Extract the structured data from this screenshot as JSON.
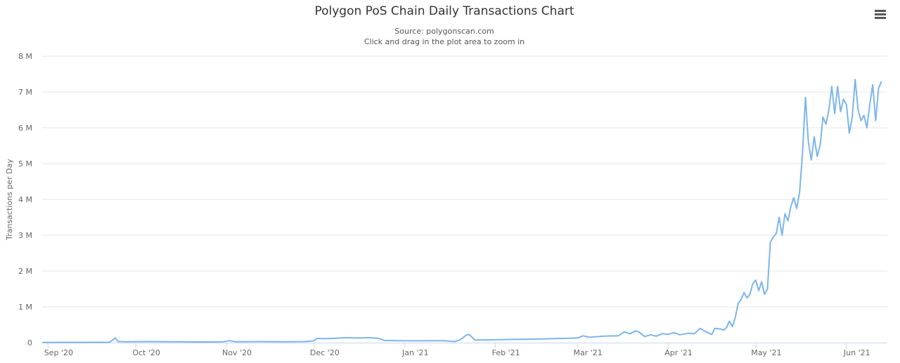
{
  "chart_data": {
    "type": "line",
    "title": "Polygon PoS Chain Daily Transactions Chart",
    "subtitle": [
      "Source: polygonscan.com",
      "Click and drag in the plot area to zoom in"
    ],
    "xlabel": "",
    "ylabel": "Transactions per Day",
    "x_ticks": [
      "Sep '20",
      "Oct '20",
      "Nov '20",
      "Dec '20",
      "Jan '21",
      "Feb '21",
      "Mar '21",
      "Apr '21",
      "May '21",
      "Jun '21"
    ],
    "y_ticks": [
      "0",
      "1 M",
      "2 M",
      "3 M",
      "4 M",
      "5 M",
      "6 M",
      "7 M",
      "8 M"
    ],
    "ylim": [
      0,
      8000000
    ],
    "xlim": [
      "2020-08-30",
      "2021-06-15"
    ],
    "grid": "horizontal",
    "legend": "none",
    "colors": {
      "line": "#7cb5ec",
      "grid": "#e6e6e6",
      "axis": "#ccd6eb"
    },
    "series": [
      {
        "points": [
          [
            "2020-08-30",
            5000
          ],
          [
            "2020-09-05",
            8000
          ],
          [
            "2020-09-12",
            7000
          ],
          [
            "2020-09-18",
            9000
          ],
          [
            "2020-09-20",
            8000
          ],
          [
            "2020-09-22",
            10000
          ],
          [
            "2020-09-24",
            130000
          ],
          [
            "2020-09-25",
            30000
          ],
          [
            "2020-09-28",
            25000
          ],
          [
            "2020-10-05",
            30000
          ],
          [
            "2020-10-15",
            25000
          ],
          [
            "2020-10-25",
            20000
          ],
          [
            "2020-10-31",
            25000
          ],
          [
            "2020-11-02",
            55000
          ],
          [
            "2020-11-04",
            25000
          ],
          [
            "2020-11-12",
            30000
          ],
          [
            "2020-11-20",
            25000
          ],
          [
            "2020-11-28",
            30000
          ],
          [
            "2020-12-01",
            50000
          ],
          [
            "2020-12-02",
            120000
          ],
          [
            "2020-12-04",
            110000
          ],
          [
            "2020-12-08",
            120000
          ],
          [
            "2020-12-12",
            140000
          ],
          [
            "2020-12-16",
            130000
          ],
          [
            "2020-12-20",
            140000
          ],
          [
            "2020-12-23",
            120000
          ],
          [
            "2020-12-25",
            60000
          ],
          [
            "2020-12-30",
            55000
          ],
          [
            "2021-01-05",
            50000
          ],
          [
            "2021-01-10",
            55000
          ],
          [
            "2021-01-15",
            50000
          ],
          [
            "2021-01-18",
            30000
          ],
          [
            "2021-01-20",
            80000
          ],
          [
            "2021-01-22",
            210000
          ],
          [
            "2021-01-23",
            230000
          ],
          [
            "2021-01-25",
            70000
          ],
          [
            "2021-02-01",
            80000
          ],
          [
            "2021-02-08",
            90000
          ],
          [
            "2021-02-15",
            100000
          ],
          [
            "2021-02-20",
            110000
          ],
          [
            "2021-02-25",
            120000
          ],
          [
            "2021-03-01",
            130000
          ],
          [
            "2021-03-03",
            190000
          ],
          [
            "2021-03-05",
            150000
          ],
          [
            "2021-03-10",
            180000
          ],
          [
            "2021-03-15",
            190000
          ],
          [
            "2021-03-17",
            300000
          ],
          [
            "2021-03-19",
            250000
          ],
          [
            "2021-03-21",
            330000
          ],
          [
            "2021-03-22",
            300000
          ],
          [
            "2021-03-24",
            170000
          ],
          [
            "2021-03-26",
            220000
          ],
          [
            "2021-03-28",
            180000
          ],
          [
            "2021-03-30",
            250000
          ],
          [
            "2021-04-01",
            230000
          ],
          [
            "2021-04-03",
            280000
          ],
          [
            "2021-04-05",
            220000
          ],
          [
            "2021-04-08",
            260000
          ],
          [
            "2021-04-10",
            250000
          ],
          [
            "2021-04-12",
            400000
          ],
          [
            "2021-04-14",
            300000
          ],
          [
            "2021-04-16",
            230000
          ],
          [
            "2021-04-17",
            400000
          ],
          [
            "2021-04-19",
            380000
          ],
          [
            "2021-04-20",
            350000
          ],
          [
            "2021-04-21",
            420000
          ],
          [
            "2021-04-22",
            600000
          ],
          [
            "2021-04-23",
            450000
          ],
          [
            "2021-04-24",
            700000
          ],
          [
            "2021-04-25",
            1100000
          ],
          [
            "2021-04-26",
            1200000
          ],
          [
            "2021-04-27",
            1400000
          ],
          [
            "2021-04-28",
            1250000
          ],
          [
            "2021-04-29",
            1350000
          ],
          [
            "2021-04-30",
            1650000
          ],
          [
            "2021-05-01",
            1750000
          ],
          [
            "2021-05-02",
            1450000
          ],
          [
            "2021-05-03",
            1700000
          ],
          [
            "2021-05-04",
            1350000
          ],
          [
            "2021-05-05",
            1500000
          ],
          [
            "2021-05-06",
            2800000
          ],
          [
            "2021-05-07",
            2950000
          ],
          [
            "2021-05-08",
            3050000
          ],
          [
            "2021-05-09",
            3500000
          ],
          [
            "2021-05-10",
            3000000
          ],
          [
            "2021-05-11",
            3600000
          ],
          [
            "2021-05-12",
            3400000
          ],
          [
            "2021-05-13",
            3800000
          ],
          [
            "2021-05-14",
            4050000
          ],
          [
            "2021-05-15",
            3750000
          ],
          [
            "2021-05-16",
            4200000
          ],
          [
            "2021-05-17",
            5300000
          ],
          [
            "2021-05-18",
            6850000
          ],
          [
            "2021-05-19",
            5600000
          ],
          [
            "2021-05-20",
            5100000
          ],
          [
            "2021-05-21",
            5750000
          ],
          [
            "2021-05-22",
            5200000
          ],
          [
            "2021-05-23",
            5500000
          ],
          [
            "2021-05-24",
            6300000
          ],
          [
            "2021-05-25",
            6100000
          ],
          [
            "2021-05-26",
            6500000
          ],
          [
            "2021-05-27",
            7150000
          ],
          [
            "2021-05-28",
            6400000
          ],
          [
            "2021-05-29",
            7150000
          ],
          [
            "2021-05-30",
            6450000
          ],
          [
            "2021-05-31",
            6800000
          ],
          [
            "2021-06-01",
            6650000
          ],
          [
            "2021-06-02",
            5850000
          ],
          [
            "2021-06-03",
            6300000
          ],
          [
            "2021-06-04",
            7350000
          ],
          [
            "2021-06-05",
            6500000
          ],
          [
            "2021-06-06",
            6200000
          ],
          [
            "2021-06-07",
            6350000
          ],
          [
            "2021-06-08",
            6000000
          ],
          [
            "2021-06-09",
            6650000
          ],
          [
            "2021-06-10",
            7200000
          ],
          [
            "2021-06-11",
            6200000
          ],
          [
            "2021-06-12",
            7100000
          ],
          [
            "2021-06-13",
            7300000
          ]
        ]
      }
    ]
  }
}
